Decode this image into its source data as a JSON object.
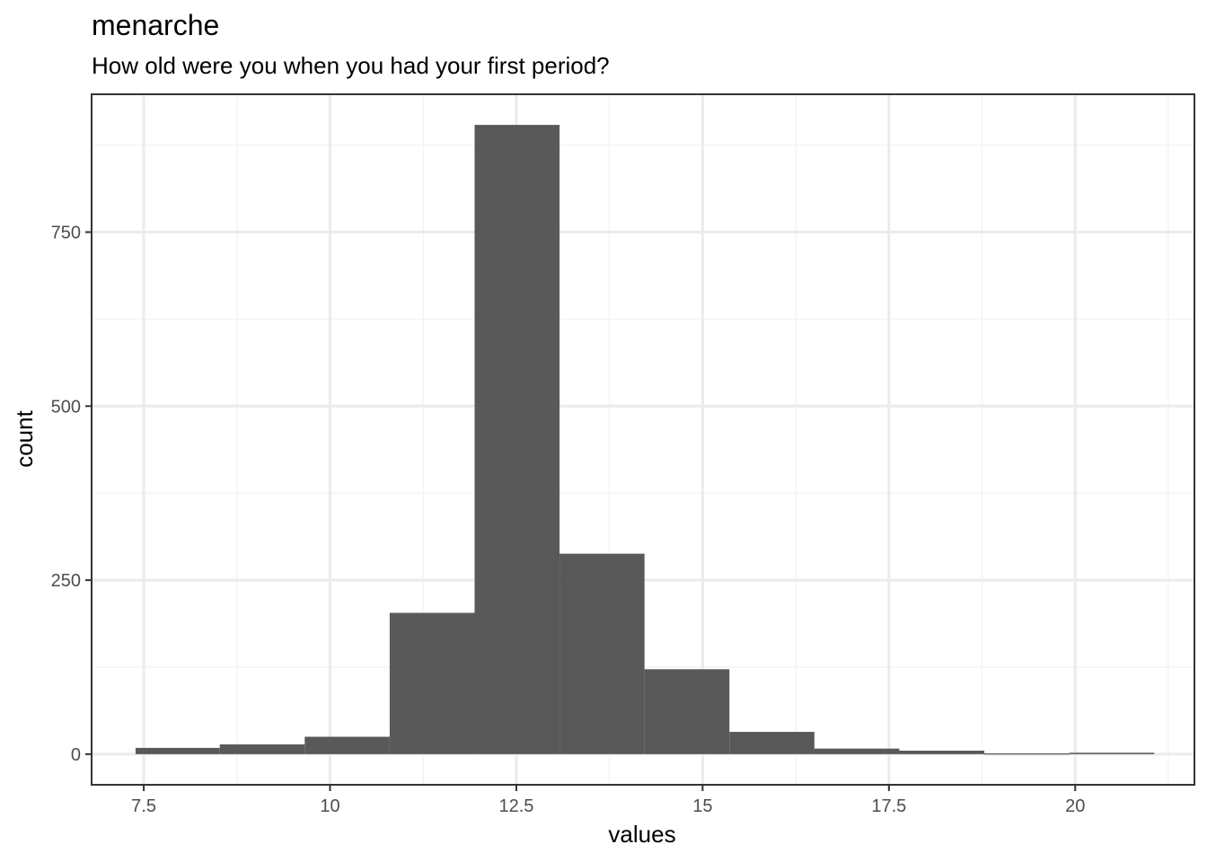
{
  "chart_data": {
    "type": "bar",
    "title": "menarche",
    "subtitle": "How old were you when you had your first period?",
    "xlabel": "values",
    "ylabel": "count",
    "xlim": [
      6.8,
      21.6
    ],
    "ylim": [
      -44,
      948
    ],
    "x_ticks": [
      {
        "value": 7.5,
        "label": "7.5"
      },
      {
        "value": 10,
        "label": "10"
      },
      {
        "value": 12.5,
        "label": "12.5"
      },
      {
        "value": 15,
        "label": "15"
      },
      {
        "value": 17.5,
        "label": "17.5"
      },
      {
        "value": 20,
        "label": "20"
      }
    ],
    "y_ticks": [
      {
        "value": 0,
        "label": "0"
      },
      {
        "value": 250,
        "label": "250"
      },
      {
        "value": 500,
        "label": "500"
      },
      {
        "value": 750,
        "label": "750"
      }
    ],
    "bins": [
      {
        "start": 7.39,
        "end": 8.52,
        "count": 9
      },
      {
        "start": 8.52,
        "end": 9.66,
        "count": 14
      },
      {
        "start": 9.66,
        "end": 10.8,
        "count": 25
      },
      {
        "start": 10.8,
        "end": 11.94,
        "count": 203
      },
      {
        "start": 11.94,
        "end": 13.08,
        "count": 904
      },
      {
        "start": 13.08,
        "end": 14.22,
        "count": 288
      },
      {
        "start": 14.22,
        "end": 15.36,
        "count": 122
      },
      {
        "start": 15.36,
        "end": 16.5,
        "count": 32
      },
      {
        "start": 16.5,
        "end": 17.64,
        "count": 8
      },
      {
        "start": 17.64,
        "end": 18.78,
        "count": 5
      },
      {
        "start": 18.78,
        "end": 19.92,
        "count": 1
      },
      {
        "start": 19.92,
        "end": 21.06,
        "count": 2
      }
    ],
    "colors": {
      "bar": "#595959",
      "grid_major": "#ebebeb",
      "grid_minor": "#f4f4f4",
      "panel_border": "#333333",
      "tick": "#333333"
    }
  }
}
